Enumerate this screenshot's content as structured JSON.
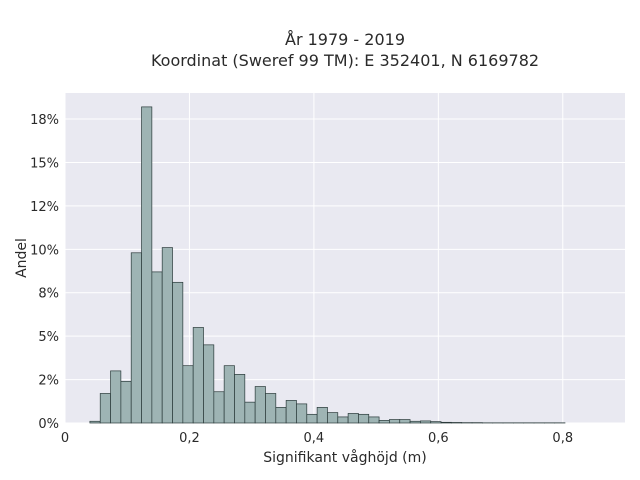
{
  "chart_data": {
    "type": "bar",
    "title_line1": "År 1979 - 2019",
    "title_line2": "Koordinat (Sweref 99 TM): E 352401, N 6169782",
    "xlabel": "Signifikant våghöjd (m)",
    "ylabel": "Andel",
    "xlim": [
      0,
      0.9
    ],
    "ylim": [
      0,
      0.19
    ],
    "x_ticks": [
      {
        "value": 0,
        "label": "0"
      },
      {
        "value": 0.2,
        "label": "0,2"
      },
      {
        "value": 0.4,
        "label": "0,4"
      },
      {
        "value": 0.6,
        "label": "0,6"
      },
      {
        "value": 0.8,
        "label": "0,8"
      }
    ],
    "y_ticks": [
      {
        "value": 0,
        "label": "0%"
      },
      {
        "value": 0.025,
        "label": "2%"
      },
      {
        "value": 0.05,
        "label": "5%"
      },
      {
        "value": 0.075,
        "label": "8%"
      },
      {
        "value": 0.1,
        "label": "10%"
      },
      {
        "value": 0.125,
        "label": "12%"
      },
      {
        "value": 0.15,
        "label": "15%"
      },
      {
        "value": 0.175,
        "label": "18%"
      }
    ],
    "bin_start": 0.04,
    "bin_width": 0.0166,
    "values": [
      0.001,
      0.017,
      0.03,
      0.024,
      0.098,
      0.182,
      0.087,
      0.101,
      0.081,
      0.033,
      0.055,
      0.045,
      0.018,
      0.033,
      0.028,
      0.012,
      0.021,
      0.017,
      0.009,
      0.013,
      0.011,
      0.005,
      0.009,
      0.006,
      0.0035,
      0.0055,
      0.005,
      0.0035,
      0.0015,
      0.002,
      0.002,
      0.001,
      0.0012,
      0.0008,
      0.0004,
      0.0003,
      0.0002,
      0.0002,
      0.0001,
      0.0001,
      0.0001,
      0.0001,
      0.0001,
      0.0001,
      0.0001,
      0.0001
    ],
    "bar_color": "#9eb4b4",
    "bar_edge_color": "#2a3a3a",
    "plot_background": "#e9e9f1",
    "grid": true
  }
}
